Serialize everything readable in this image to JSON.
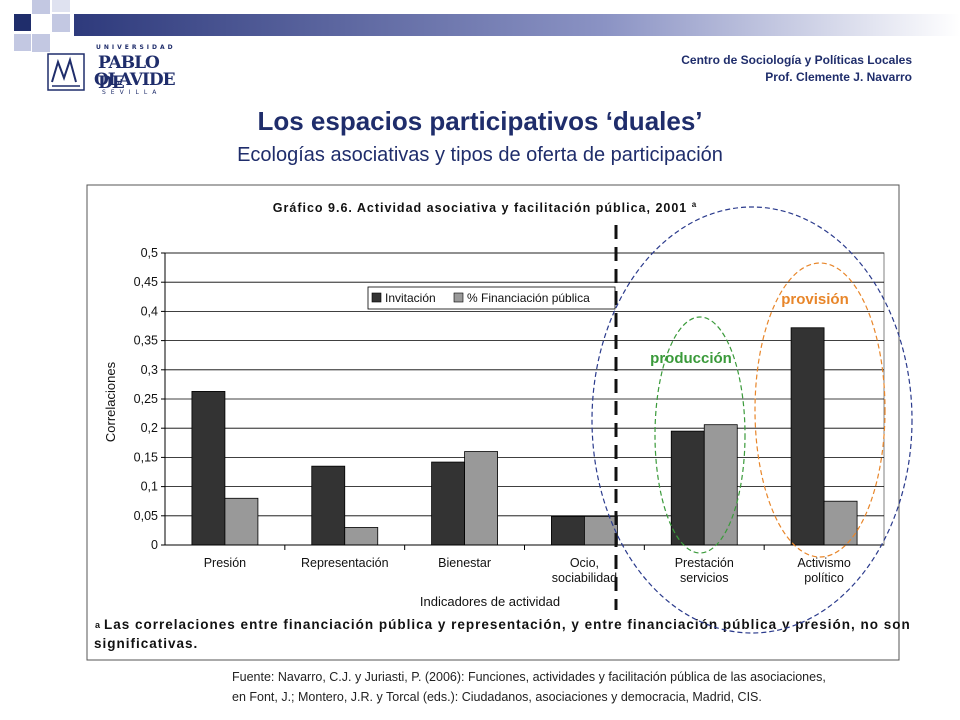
{
  "header": {
    "center_name": "Centro de Sociología y Políticas Locales",
    "author": "Prof. Clemente J. Navarro"
  },
  "logo": {
    "line1": "UNIVERSIDAD",
    "line2": "PABLO DE",
    "line3": "OLAVIDE",
    "line4": "SEVILLA"
  },
  "slide": {
    "title": "Los espacios participativos ‘duales’",
    "subtitle": "Ecologías asociativas y tipos de oferta de participación"
  },
  "annotations": {
    "produccion": "producción",
    "provision": "provisión"
  },
  "chart_data": {
    "type": "bar",
    "title": "Gráfico 9.6. Actividad asociativa y facilitación pública, 2001",
    "title_superscript": "a",
    "xlabel": "Indicadores de actividad",
    "ylabel": "Correlaciones",
    "ylim": [
      0,
      0.5
    ],
    "yticks": [
      "0",
      "0,05",
      "0,1",
      "0,15",
      "0,2",
      "0,25",
      "0,3",
      "0,35",
      "0,4",
      "0,45",
      "0,5"
    ],
    "grid": true,
    "legend_position": "top-center",
    "categories": [
      "Presión",
      "Representación",
      "Bienestar",
      "Ocio, sociabilidad",
      "Prestación servicios",
      "Activismo político"
    ],
    "series": [
      {
        "name": "Invitación",
        "color": "#333333",
        "values": [
          0.263,
          0.135,
          0.142,
          0.049,
          0.195,
          0.372
        ]
      },
      {
        "name": "% Financiación pública",
        "color": "#999999",
        "values": [
          0.08,
          0.03,
          0.16,
          0.049,
          0.206,
          0.075
        ]
      }
    ],
    "footnote_mark": "a",
    "footnote": "Las correlaciones entre financiación pública y representación, y entre financiación pública y presión, no son significativas."
  },
  "source": {
    "line1": "Fuente: Navarro, C.J. y Juriasti, P. (2006): Funciones, actividades y facilitación pública de las asociaciones,",
    "line2": "en Font, J.; Montero, J.R. y Torcal (eds.): Ciudadanos, asociaciones y democracia, Madrid, CIS."
  },
  "colors": {
    "navy": "#1f2d6b",
    "produccion": "#3a9a3a",
    "provision": "#e8862a",
    "dual_ellipse": "#2a3a8c"
  }
}
